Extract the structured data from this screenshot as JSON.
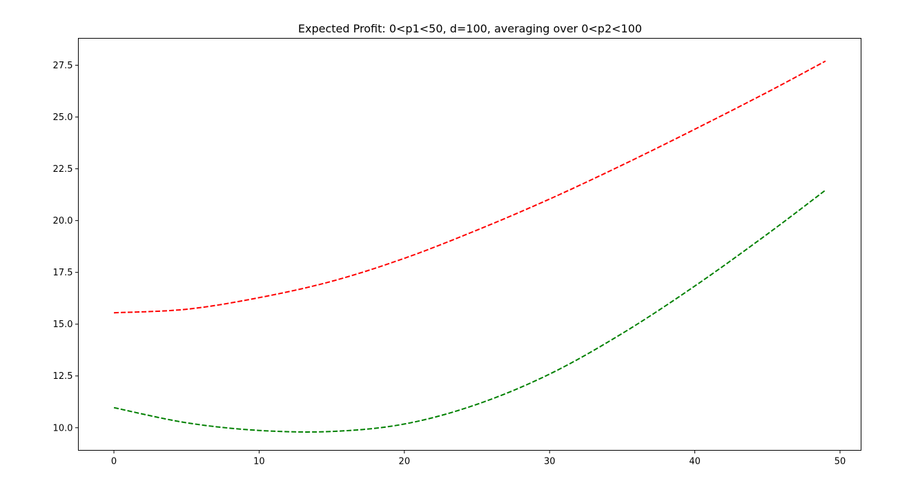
{
  "chart_data": {
    "type": "line",
    "title": "Expected Profit: 0<p1<50, d=100, averaging over 0<p2<100",
    "xlabel": "",
    "ylabel": "",
    "xlim": [
      -2.45,
      51.45
    ],
    "ylim": [
      8.91,
      28.8
    ],
    "xticks": [
      0,
      10,
      20,
      30,
      40,
      50
    ],
    "xtick_labels": [
      "0",
      "10",
      "20",
      "30",
      "40",
      "50"
    ],
    "yticks": [
      10.0,
      12.5,
      15.0,
      17.5,
      20.0,
      22.5,
      25.0,
      27.5
    ],
    "ytick_labels": [
      "10.0",
      "12.5",
      "15.0",
      "17.5",
      "20.0",
      "22.5",
      "25.0",
      "27.5"
    ],
    "grid": false,
    "legend": false,
    "x": [
      0,
      5,
      10,
      15,
      20,
      25,
      30,
      35,
      40,
      45,
      49
    ],
    "series": [
      {
        "color": "#ff0000",
        "linestyle": "dashed",
        "values": [
          15.55,
          15.72,
          16.28,
          17.07,
          18.18,
          19.54,
          21.04,
          22.68,
          24.41,
          26.2,
          27.7
        ]
      },
      {
        "color": "#008000",
        "linestyle": "dashed",
        "values": [
          10.97,
          10.24,
          9.87,
          9.82,
          10.18,
          11.13,
          12.59,
          14.55,
          16.84,
          19.35,
          21.47
        ]
      }
    ]
  }
}
